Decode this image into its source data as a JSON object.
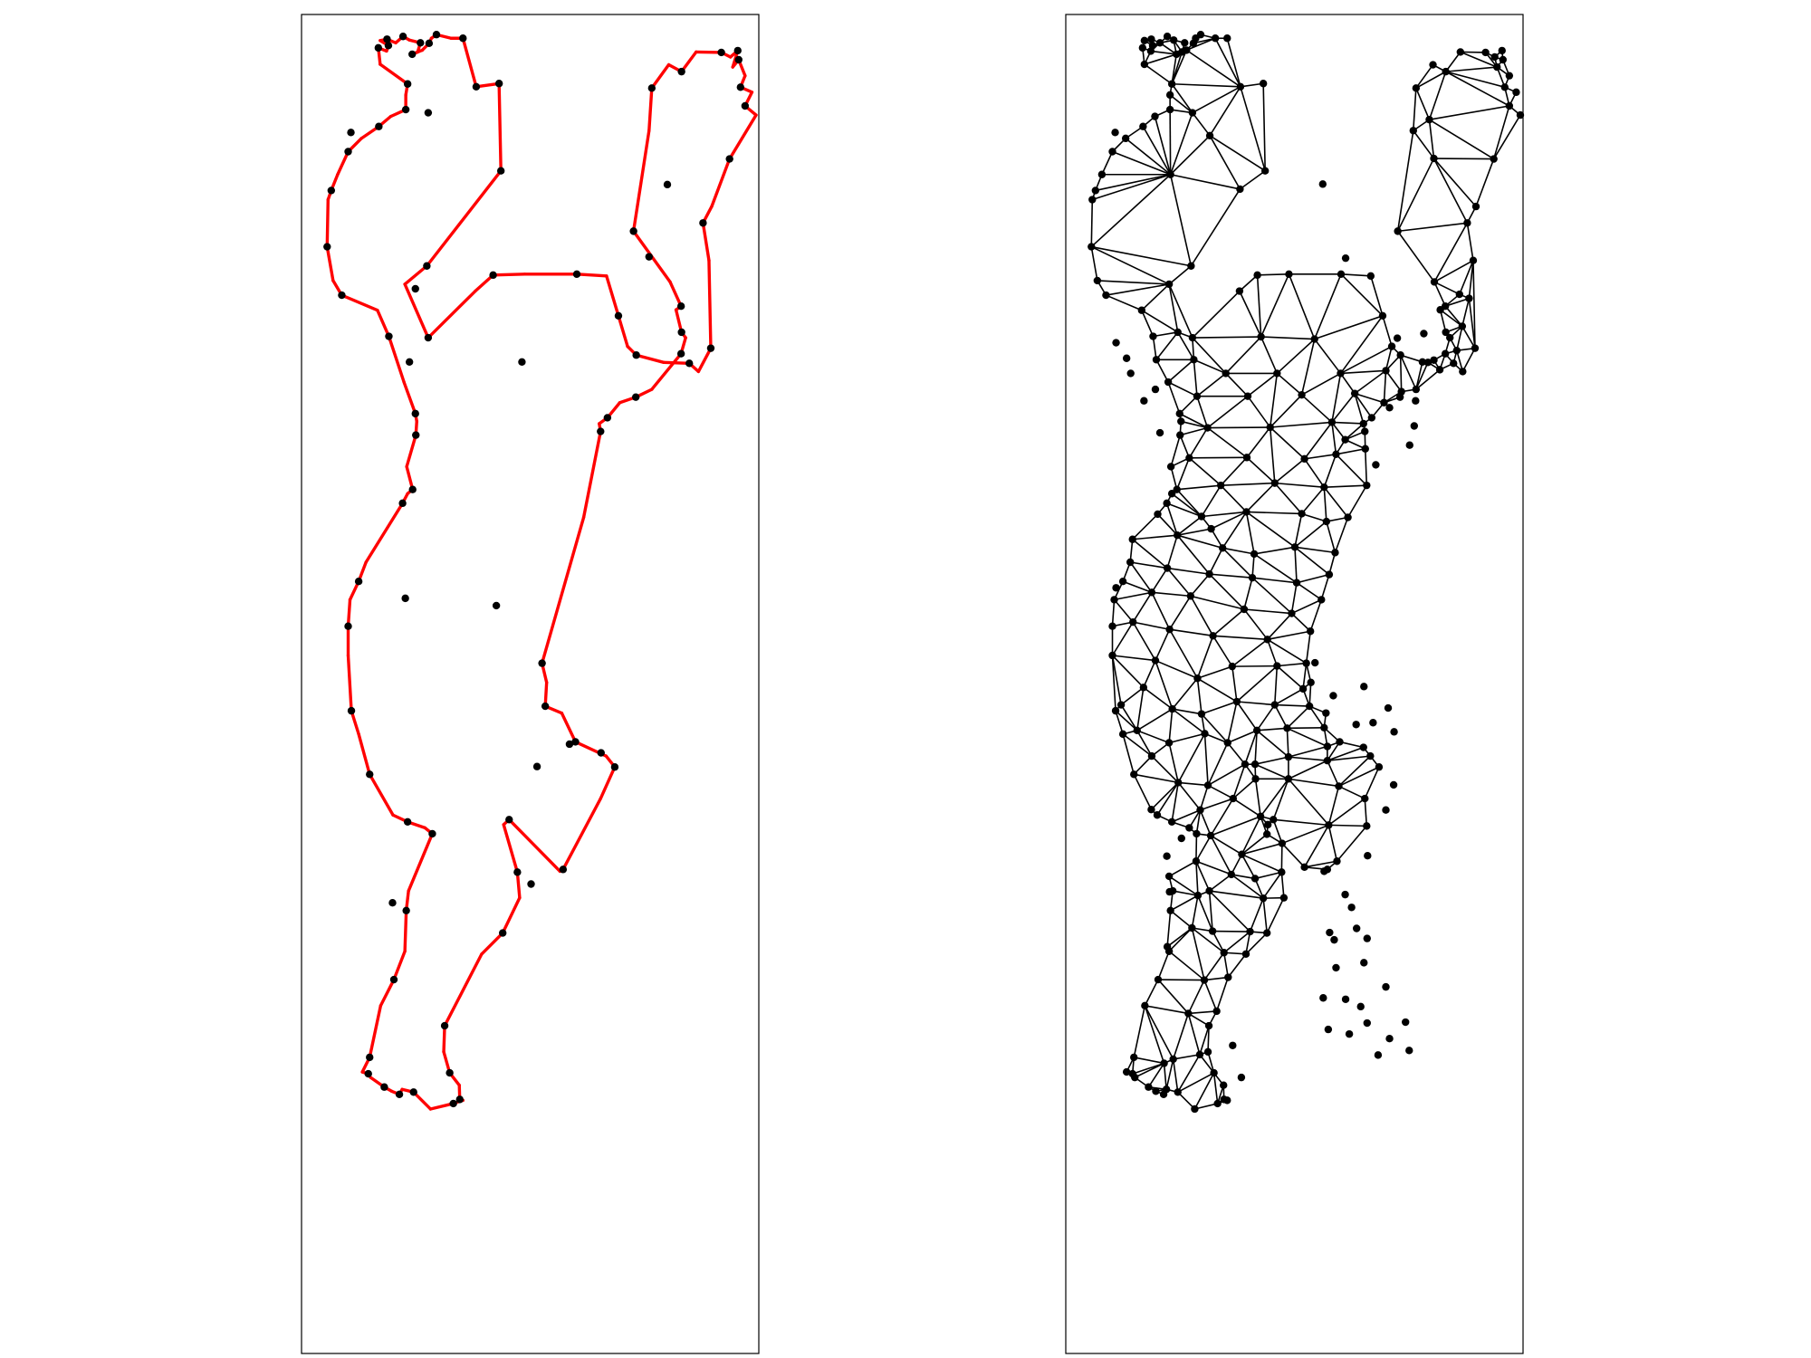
{
  "colors": {
    "boundary": "#ff0000",
    "mesh_edge": "#000000",
    "vertex": "#000000",
    "frame": "#000000"
  },
  "panels": [
    {
      "name": "boundary-panel",
      "kind": "polygon",
      "boundary": [
        [
          0.353,
          0.052
        ],
        [
          0.382,
          0.158
        ],
        [
          0.432,
          0.151
        ],
        [
          0.436,
          0.342
        ],
        [
          0.274,
          0.55
        ],
        [
          0.226,
          0.59
        ],
        [
          0.277,
          0.707
        ],
        [
          0.38,
          0.605
        ],
        [
          0.419,
          0.57
        ],
        [
          0.488,
          0.568
        ],
        [
          0.602,
          0.568
        ],
        [
          0.667,
          0.572
        ],
        [
          0.693,
          0.659
        ],
        [
          0.713,
          0.726
        ],
        [
          0.732,
          0.745
        ],
        [
          0.792,
          0.761
        ],
        [
          0.848,
          0.763
        ],
        [
          0.868,
          0.781
        ],
        [
          0.895,
          0.73
        ],
        [
          0.891,
          0.538
        ],
        [
          0.878,
          0.456
        ],
        [
          0.897,
          0.42
        ],
        [
          0.936,
          0.316
        ],
        [
          0.994,
          0.22
        ],
        [
          0.97,
          0.2
        ],
        [
          0.985,
          0.17
        ],
        [
          0.96,
          0.159
        ],
        [
          0.97,
          0.134
        ],
        [
          0.956,
          0.099
        ],
        [
          0.943,
          0.115
        ],
        [
          0.954,
          0.079
        ],
        [
          0.938,
          0.093
        ],
        [
          0.918,
          0.083
        ],
        [
          0.863,
          0.082
        ],
        [
          0.831,
          0.125
        ],
        [
          0.803,
          0.11
        ],
        [
          0.766,
          0.161
        ],
        [
          0.76,
          0.254
        ],
        [
          0.726,
          0.474
        ],
        [
          0.806,
          0.585
        ],
        [
          0.83,
          0.638
        ],
        [
          0.819,
          0.646
        ],
        [
          0.831,
          0.695
        ],
        [
          0.84,
          0.707
        ],
        [
          0.83,
          0.742
        ],
        [
          0.766,
          0.82
        ],
        [
          0.731,
          0.837
        ],
        [
          0.696,
          0.849
        ],
        [
          0.669,
          0.882
        ],
        [
          0.651,
          0.895
        ],
        [
          0.654,
          0.912
        ],
        [
          0.617,
          1.1
        ],
        [
          0.526,
          1.419
        ],
        [
          0.536,
          1.461
        ],
        [
          0.533,
          1.513
        ],
        [
          0.569,
          1.528
        ],
        [
          0.599,
          1.591
        ],
        [
          0.666,
          1.622
        ],
        [
          0.685,
          1.646
        ],
        [
          0.654,
          1.715
        ],
        [
          0.572,
          1.87
        ],
        [
          0.565,
          1.874
        ],
        [
          0.454,
          1.761
        ],
        [
          0.442,
          1.772
        ],
        [
          0.472,
          1.876
        ],
        [
          0.477,
          1.932
        ],
        [
          0.44,
          2.009
        ],
        [
          0.394,
          2.055
        ],
        [
          0.313,
          2.212
        ],
        [
          0.311,
          2.269
        ],
        [
          0.324,
          2.315
        ],
        [
          0.345,
          2.342
        ],
        [
          0.346,
          2.373
        ],
        [
          0.353,
          2.375
        ],
        [
          0.332,
          2.382
        ],
        [
          0.282,
          2.394
        ],
        [
          0.245,
          2.357
        ],
        [
          0.22,
          2.351
        ],
        [
          0.214,
          2.362
        ],
        [
          0.197,
          2.355
        ],
        [
          0.181,
          2.346
        ],
        [
          0.151,
          2.325
        ],
        [
          0.146,
          2.317
        ],
        [
          0.133,
          2.313
        ],
        [
          0.149,
          2.281
        ],
        [
          0.173,
          2.168
        ],
        [
          0.202,
          2.111
        ],
        [
          0.226,
          2.049
        ],
        [
          0.229,
          1.96
        ],
        [
          0.234,
          1.917
        ],
        [
          0.286,
          1.792
        ],
        [
          0.27,
          1.779
        ],
        [
          0.232,
          1.766
        ],
        [
          0.2,
          1.751
        ],
        [
          0.149,
          1.662
        ],
        [
          0.125,
          1.574
        ],
        [
          0.109,
          1.523
        ],
        [
          0.102,
          1.402
        ],
        [
          0.102,
          1.338
        ],
        [
          0.106,
          1.28
        ],
        [
          0.125,
          1.24
        ],
        [
          0.141,
          1.198
        ],
        [
          0.221,
          1.069
        ],
        [
          0.232,
          1.048
        ],
        [
          0.243,
          1.039
        ],
        [
          0.23,
          0.989
        ],
        [
          0.25,
          0.92
        ],
        [
          0.252,
          0.89
        ],
        [
          0.249,
          0.873
        ],
        [
          0.224,
          0.804
        ],
        [
          0.191,
          0.704
        ],
        [
          0.166,
          0.647
        ],
        [
          0.088,
          0.614
        ],
        [
          0.069,
          0.582
        ],
        [
          0.056,
          0.508
        ],
        [
          0.058,
          0.405
        ],
        [
          0.065,
          0.385
        ],
        [
          0.079,
          0.35
        ],
        [
          0.102,
          0.3
        ],
        [
          0.131,
          0.271
        ],
        [
          0.169,
          0.245
        ],
        [
          0.195,
          0.223
        ],
        [
          0.228,
          0.208
        ],
        [
          0.228,
          0.176
        ],
        [
          0.232,
          0.152
        ],
        [
          0.172,
          0.109
        ],
        [
          0.168,
          0.073
        ],
        [
          0.186,
          0.08
        ],
        [
          0.19,
          0.068
        ],
        [
          0.172,
          0.057
        ],
        [
          0.187,
          0.054
        ],
        [
          0.206,
          0.062
        ],
        [
          0.222,
          0.048
        ],
        [
          0.236,
          0.056
        ],
        [
          0.26,
          0.062
        ],
        [
          0.254,
          0.082
        ],
        [
          0.242,
          0.087
        ],
        [
          0.264,
          0.078
        ],
        [
          0.279,
          0.063
        ],
        [
          0.284,
          0.052
        ],
        [
          0.295,
          0.044
        ],
        [
          0.327,
          0.052
        ]
      ],
      "interior": [
        [
          0.277,
          0.215
        ],
        [
          0.108,
          0.258
        ],
        [
          0.315,
          0.265
        ],
        [
          0.795,
          0.23
        ],
        [
          0.805,
          0.315
        ],
        [
          0.229,
          0.35
        ],
        [
          0.381,
          0.382
        ],
        [
          0.562,
          0.371
        ],
        [
          0.612,
          0.533
        ],
        [
          0.245,
          0.695
        ],
        [
          0.427,
          0.705
        ],
        [
          0.544,
          0.71
        ],
        [
          0.725,
          0.708
        ],
        [
          0.867,
          0.682
        ],
        [
          0.783,
          0.698
        ],
        [
          0.882,
          0.621
        ],
        [
          0.861,
          0.612
        ],
        [
          0.855,
          0.735
        ],
        [
          0.28,
          0.755
        ],
        [
          0.35,
          0.785
        ],
        [
          0.462,
          0.785
        ],
        [
          0.601,
          0.785
        ],
        [
          0.7,
          0.779
        ],
        [
          0.78,
          0.76
        ],
        [
          0.805,
          0.756
        ],
        [
          0.818,
          0.777
        ],
        [
          0.171,
          0.845
        ],
        [
          0.196,
          0.82
        ],
        [
          0.198,
          0.755
        ],
        [
          0.11,
          0.718
        ],
        [
          0.133,
          0.752
        ],
        [
          0.142,
          0.785
        ],
        [
          0.287,
          0.835
        ],
        [
          0.398,
          0.835
        ],
        [
          0.516,
          0.832
        ],
        [
          0.632,
          0.829
        ],
        [
          0.734,
          0.825
        ],
        [
          0.206,
          0.915
        ],
        [
          0.31,
          0.904
        ],
        [
          0.447,
          0.903
        ],
        [
          0.582,
          0.892
        ],
        [
          0.708,
          0.86
        ],
        [
          0.765,
          0.845
        ],
        [
          0.762,
          0.9
        ],
        [
          0.752,
          0.942
        ],
        [
          0.27,
          0.97
        ],
        [
          0.396,
          0.969
        ],
        [
          0.522,
          0.972
        ],
        [
          0.591,
          0.962
        ],
        [
          0.678,
          0.985
        ],
        [
          0.655,
          0.95
        ],
        [
          0.611,
          0.93
        ],
        [
          0.339,
          1.03
        ],
        [
          0.457,
          1.025
        ],
        [
          0.565,
          1.034
        ],
        [
          0.658,
          1.03
        ],
        [
          0.201,
          1.093
        ],
        [
          0.297,
          1.098
        ],
        [
          0.395,
          1.088
        ],
        [
          0.516,
          1.092
        ],
        [
          0.57,
          1.109
        ],
        [
          0.318,
          1.125
        ],
        [
          0.146,
          1.148
        ],
        [
          0.244,
          1.139
        ],
        [
          0.343,
          1.167
        ],
        [
          0.412,
          1.18
        ],
        [
          0.501,
          1.165
        ],
        [
          0.589,
          1.177
        ],
        [
          0.222,
          1.211
        ],
        [
          0.314,
          1.224
        ],
        [
          0.408,
          1.232
        ],
        [
          0.505,
          1.243
        ],
        [
          0.576,
          1.225
        ],
        [
          0.11,
          1.254
        ],
        [
          0.188,
          1.264
        ],
        [
          0.273,
          1.272
        ],
        [
          0.39,
          1.301
        ],
        [
          0.494,
          1.31
        ],
        [
          0.559,
          1.28
        ],
        [
          0.147,
          1.329
        ],
        [
          0.227,
          1.345
        ],
        [
          0.322,
          1.359
        ],
        [
          0.441,
          1.367
        ],
        [
          0.535,
          1.349
        ],
        [
          0.196,
          1.413
        ],
        [
          0.288,
          1.452
        ],
        [
          0.364,
          1.426
        ],
        [
          0.462,
          1.425
        ],
        [
          0.545,
          1.418
        ],
        [
          0.17,
          1.472
        ],
        [
          0.233,
          1.519
        ],
        [
          0.297,
          1.53
        ],
        [
          0.374,
          1.503
        ],
        [
          0.457,
          1.51
        ],
        [
          0.519,
          1.475
        ],
        [
          0.585,
          1.49
        ],
        [
          0.652,
          1.47
        ],
        [
          0.705,
          1.517
        ],
        [
          0.121,
          1.51
        ],
        [
          0.156,
          1.566
        ],
        [
          0.188,
          1.622
        ],
        [
          0.226,
          1.593
        ],
        [
          0.304,
          1.573
        ],
        [
          0.354,
          1.593
        ],
        [
          0.418,
          1.566
        ],
        [
          0.484,
          1.561
        ],
        [
          0.565,
          1.56
        ],
        [
          0.635,
          1.553
        ],
        [
          0.672,
          1.549
        ],
        [
          0.718,
          1.569
        ],
        [
          0.651,
          1.603
        ],
        [
          0.392,
          1.64
        ],
        [
          0.487,
          1.624
        ],
        [
          0.572,
          1.601
        ],
        [
          0.597,
          1.688
        ],
        [
          0.717,
          1.685
        ],
        [
          0.246,
          1.68
        ],
        [
          0.311,
          1.686
        ],
        [
          0.415,
          1.672
        ],
        [
          0.487,
          1.672
        ],
        [
          0.572,
          1.632
        ],
        [
          0.414,
          1.64
        ],
        [
          0.366,
          1.715
        ],
        [
          0.294,
          1.74
        ],
        [
          0.426,
          1.754
        ],
        [
          0.44,
          1.793
        ],
        [
          0.473,
          1.813
        ],
        [
          0.575,
          1.773
        ],
        [
          0.658,
          1.775
        ],
        [
          0.7,
          1.74
        ],
        [
          0.187,
          1.739
        ],
        [
          0.317,
          1.796
        ],
        [
          0.385,
          1.837
        ],
        [
          0.522,
          1.865
        ],
        [
          0.593,
          1.852
        ],
        [
          0.66,
          1.84
        ],
        [
          0.611,
          1.925
        ],
        [
          0.625,
          1.953
        ],
        [
          0.577,
          2.008
        ],
        [
          0.636,
          1.999
        ],
        [
          0.253,
          1.802
        ],
        [
          0.285,
          1.852
        ],
        [
          0.221,
          1.841
        ],
        [
          0.226,
          1.885
        ],
        [
          0.227,
          1.919
        ],
        [
          0.314,
          1.917
        ],
        [
          0.289,
          1.927
        ],
        [
          0.362,
          1.881
        ],
        [
          0.414,
          1.89
        ],
        [
          0.432,
          1.933
        ],
        [
          0.276,
          1.998
        ],
        [
          0.321,
          2.005
        ],
        [
          0.222,
          2.039
        ],
        [
          0.346,
          2.052
        ],
        [
          0.403,
          2.006
        ],
        [
          0.303,
          2.112
        ],
        [
          0.355,
          2.106
        ],
        [
          0.268,
          2.185
        ],
        [
          0.33,
          2.18
        ],
        [
          0.293,
          2.275
        ],
        [
          0.215,
          2.294
        ],
        [
          0.235,
          2.285
        ],
        [
          0.365,
          2.255
        ],
        [
          0.384,
          2.325
        ],
        [
          0.587,
          2.024
        ],
        [
          0.659,
          2.021
        ],
        [
          0.591,
          2.085
        ],
        [
          0.652,
          2.074
        ],
        [
          0.563,
          2.151
        ],
        [
          0.612,
          2.154
        ],
        [
          0.645,
          2.17
        ],
        [
          0.7,
          2.127
        ],
        [
          0.574,
          2.22
        ],
        [
          0.659,
          2.206
        ],
        [
          0.62,
          2.23
        ],
        [
          0.743,
          2.204
        ],
        [
          0.683,
          2.276
        ],
        [
          0.708,
          2.24
        ],
        [
          0.751,
          2.266
        ]
      ],
      "outer_points": [
        [
          0.197,
          0.08
        ],
        [
          0.218,
          0.097
        ],
        [
          0.231,
          0.108
        ],
        [
          0.189,
          0.14
        ],
        [
          0.298,
          0.118
        ],
        [
          0.322,
          0.103
        ],
        [
          0.342,
          0.104
        ],
        [
          0.376,
          0.113
        ],
        [
          0.94,
          0.105
        ],
        [
          0.904,
          0.102
        ],
        [
          0.96,
          0.085
        ],
        [
          0.962,
          0.161
        ],
        [
          0.955,
          0.115
        ]
      ]
    }
  ]
}
